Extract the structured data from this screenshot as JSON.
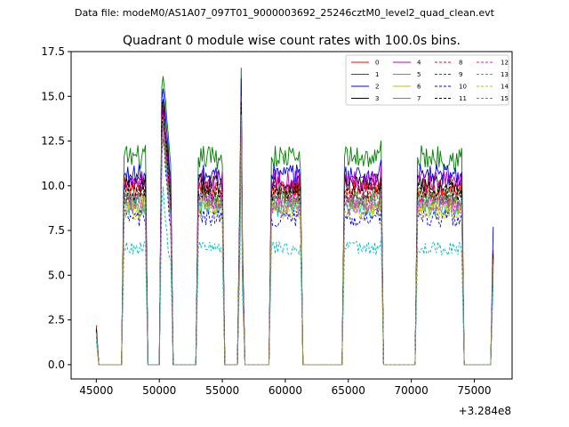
{
  "suptitle": "Data file: modeM0/AS1A07_097T01_9000003692_25246cztM0_level2_quad_clean.evt",
  "chart_data": {
    "type": "line",
    "title": "Quadrant 0 module wise count rates with 100.0s bins.",
    "xlabel": "",
    "ylabel": "",
    "x_offset_label": "+3.284e8",
    "xlim": [
      43000,
      78000
    ],
    "ylim": [
      -0.8,
      17.5
    ],
    "xticks": [
      45000,
      50000,
      55000,
      60000,
      65000,
      70000,
      75000
    ],
    "xtick_labels": [
      "45000",
      "50000",
      "55000",
      "60000",
      "65000",
      "70000",
      "75000"
    ],
    "yticks": [
      0.0,
      2.5,
      5.0,
      7.5,
      10.0,
      12.5,
      15.0,
      17.5
    ],
    "ytick_labels": [
      "0.0",
      "2.5",
      "5.0",
      "7.5",
      "10.0",
      "12.5",
      "15.0",
      "17.5"
    ],
    "legend_location": "top-right",
    "legend_columns": 4,
    "segments": [
      {
        "start": 45000,
        "end": 45000,
        "spike": 0
      },
      {
        "start": 47200,
        "end": 48900,
        "spike": 0
      },
      {
        "start": 50200,
        "end": 50900,
        "spike": 1
      },
      {
        "start": 53100,
        "end": 55000,
        "spike": 0
      },
      {
        "start": 56400,
        "end": 56600,
        "spike": 2
      },
      {
        "start": 58900,
        "end": 61200,
        "spike": 0
      },
      {
        "start": 64700,
        "end": 67600,
        "spike": 0
      },
      {
        "start": 70500,
        "end": 74000,
        "spike": 0
      },
      {
        "start": 76500,
        "end": 76500,
        "spike": 0
      }
    ],
    "series": [
      {
        "name": "0",
        "color": "#ff0000",
        "dash": "solid",
        "level": 9.9,
        "spike1": 14.6,
        "spike2": 15.2,
        "edge": 2.2,
        "end": 6.4
      },
      {
        "name": "1",
        "color": "#008000",
        "dash": "solid",
        "level": 11.6,
        "spike1": 16.2,
        "spike2": 16.6,
        "edge": 2.1,
        "end": 5.9
      },
      {
        "name": "2",
        "color": "#0000ff",
        "dash": "solid",
        "level": 10.6,
        "spike1": 15.5,
        "spike2": 16.0,
        "edge": 2.0,
        "end": 7.7
      },
      {
        "name": "3",
        "color": "#000000",
        "dash": "solid",
        "level": 10.1,
        "spike1": 14.9,
        "spike2": 14.8,
        "edge": 2.0,
        "end": 6.2
      },
      {
        "name": "4",
        "color": "#bf00bf",
        "dash": "solid",
        "level": 10.3,
        "spike1": 14.5,
        "spike2": 15.0,
        "edge": 1.9,
        "end": 6.0
      },
      {
        "name": "5",
        "color": "#00bfbf",
        "dash": "solid",
        "level": 8.8,
        "spike1": 13.0,
        "spike2": 13.6,
        "edge": 1.7,
        "end": 5.5
      },
      {
        "name": "6",
        "color": "#bfbf00",
        "dash": "solid",
        "level": 8.9,
        "spike1": 13.3,
        "spike2": 13.9,
        "edge": 1.8,
        "end": 5.6
      },
      {
        "name": "7",
        "color": "#808080",
        "dash": "solid",
        "level": 9.2,
        "spike1": 13.6,
        "spike2": 14.1,
        "edge": 1.8,
        "end": 5.8
      },
      {
        "name": "8",
        "color": "#ff0000",
        "dash": "dashed",
        "level": 9.6,
        "spike1": 14.1,
        "spike2": 14.6,
        "edge": 1.9,
        "end": 6.0
      },
      {
        "name": "9",
        "color": "#008000",
        "dash": "dashed",
        "level": 9.4,
        "spike1": 13.9,
        "spike2": 14.4,
        "edge": 1.9,
        "end": 5.9
      },
      {
        "name": "10",
        "color": "#0000ff",
        "dash": "dashed",
        "level": 8.2,
        "spike1": 12.6,
        "spike2": 13.1,
        "edge": 1.6,
        "end": 5.3
      },
      {
        "name": "11",
        "color": "#000000",
        "dash": "dashed",
        "level": 9.7,
        "spike1": 14.2,
        "spike2": 14.7,
        "edge": 1.9,
        "end": 6.1
      },
      {
        "name": "12",
        "color": "#ff00ff",
        "dash": "dashed",
        "level": 9.0,
        "spike1": 13.4,
        "spike2": 13.9,
        "edge": 1.8,
        "end": 5.7
      },
      {
        "name": "13",
        "color": "#00bfbf",
        "dash": "dashed",
        "level": 6.5,
        "spike1": 9.9,
        "spike2": 12.0,
        "edge": 1.3,
        "end": 4.5
      },
      {
        "name": "14",
        "color": "#bfbf00",
        "dash": "dashed",
        "level": 8.6,
        "spike1": 13.0,
        "spike2": 13.5,
        "edge": 1.7,
        "end": 5.5
      },
      {
        "name": "15",
        "color": "#808080",
        "dash": "dashed",
        "level": 9.1,
        "spike1": 13.5,
        "spike2": 14.0,
        "edge": 1.8,
        "end": 5.8
      }
    ]
  }
}
